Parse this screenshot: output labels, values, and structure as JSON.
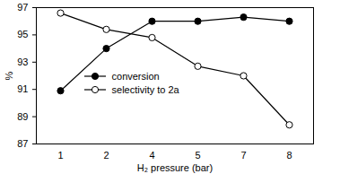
{
  "chart_data": {
    "type": "line",
    "x_label": "H₂ pressure (bar)",
    "y_label": "%",
    "categories": [
      "1",
      "2",
      "4",
      "5",
      "7",
      "8"
    ],
    "series": [
      {
        "name": "conversion",
        "color": "#000000",
        "marker": "circle",
        "values": [
          90.9,
          94.0,
          96.0,
          96.0,
          96.3,
          96.0
        ]
      },
      {
        "name": "selectivity to 2a",
        "color": "#000000",
        "marker": "open_circle",
        "values": [
          96.6,
          95.4,
          94.8,
          92.7,
          92.0,
          88.4
        ]
      }
    ],
    "ylim": [
      87,
      97
    ],
    "yticks": [
      87,
      89,
      91,
      93,
      95,
      97
    ],
    "grid": false,
    "legend": "left"
  }
}
